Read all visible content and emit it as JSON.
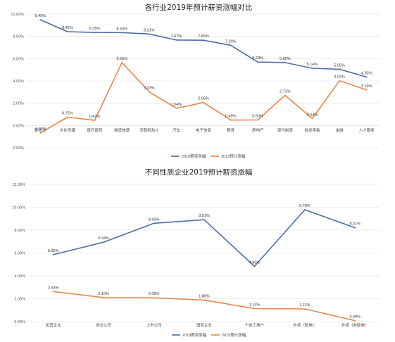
{
  "colors": {
    "s2018": "#4a6fa5",
    "s2019": "#e8884a",
    "grid": "#dddddd"
  },
  "chart_data": [
    {
      "type": "line",
      "title": "各行业2019年预计薪资涨幅对比",
      "categories": [
        "影视业",
        "文化传媒",
        "医疗医药",
        "物流快递",
        "互联网及IT",
        "汽车",
        "电子信息",
        "教育",
        "房地产",
        "现代制造",
        "批发零售",
        "金融",
        "人才服务"
      ],
      "series": [
        {
          "name": "2018薪资涨幅",
          "values": [
            9.49,
            8.42,
            8.35,
            8.34,
            8.21,
            7.67,
            7.65,
            7.2,
            5.69,
            5.65,
            5.14,
            5.05,
            4.35
          ],
          "labels": [
            "9.49%",
            "8.42%",
            "8.35%",
            "8.34%",
            "8.21%",
            "7.67%",
            "7.65%",
            "7.20%",
            "5.69%",
            "5.65%",
            "5.14%",
            "5.05%",
            "4.35%"
          ]
        },
        {
          "name": "2019预计涨幅",
          "values": [
            -0.67,
            0.75,
            0.47,
            5.65,
            3.03,
            1.54,
            2.06,
            0.49,
            0.5,
            2.71,
            0.63,
            4.02,
            3.19
          ],
          "labels": [
            "-0.67%",
            "0.75%",
            "0.47%",
            "5.65%",
            "3.03%",
            "1.54%",
            "2.06%",
            "0.49%",
            "0.50%",
            "2.71%",
            "0.63%",
            "4.02%",
            "3.19%"
          ]
        }
      ],
      "ylim": [
        -2,
        10
      ],
      "yticks": [
        -2,
        0,
        2,
        4,
        6,
        8,
        10
      ],
      "ytick_labels": [
        "-2.00%",
        "0.00%",
        "2.00%",
        "4.00%",
        "6.00%",
        "8.00%",
        "10.00%"
      ],
      "grid": true,
      "legend_position": "bottom"
    },
    {
      "type": "line",
      "title": "不同性质企业2019预计薪资涨幅",
      "categories": [
        "民营企业",
        "创业公司",
        "上市公司",
        "国有企业",
        "个体工商户",
        "外资（欧美）",
        "外资（非欧美）"
      ],
      "series": [
        {
          "name": "2018薪资涨幅",
          "values": [
            5.85,
            6.94,
            8.6,
            8.91,
            4.83,
            9.78,
            8.21
          ],
          "labels": [
            "5.85%",
            "6.94%",
            "8.60%",
            "8.91%",
            "4.83%",
            "9.78%",
            "8.21%"
          ]
        },
        {
          "name": "2019预计涨幅",
          "values": [
            2.63,
            2.1,
            2.08,
            1.88,
            1.14,
            1.11,
            0.08
          ],
          "labels": [
            "2.63%",
            "2.10%",
            "2.08%",
            "1.88%",
            "1.14%",
            "1.11%",
            "0.08%"
          ]
        }
      ],
      "ylim": [
        0,
        12
      ],
      "yticks": [
        0,
        2,
        4,
        6,
        8,
        10,
        12
      ],
      "ytick_labels": [
        "0.00%",
        "2.00%",
        "4.00%",
        "6.00%",
        "8.00%",
        "10.00%",
        "12.00%"
      ],
      "grid": true,
      "legend_position": "bottom"
    }
  ]
}
